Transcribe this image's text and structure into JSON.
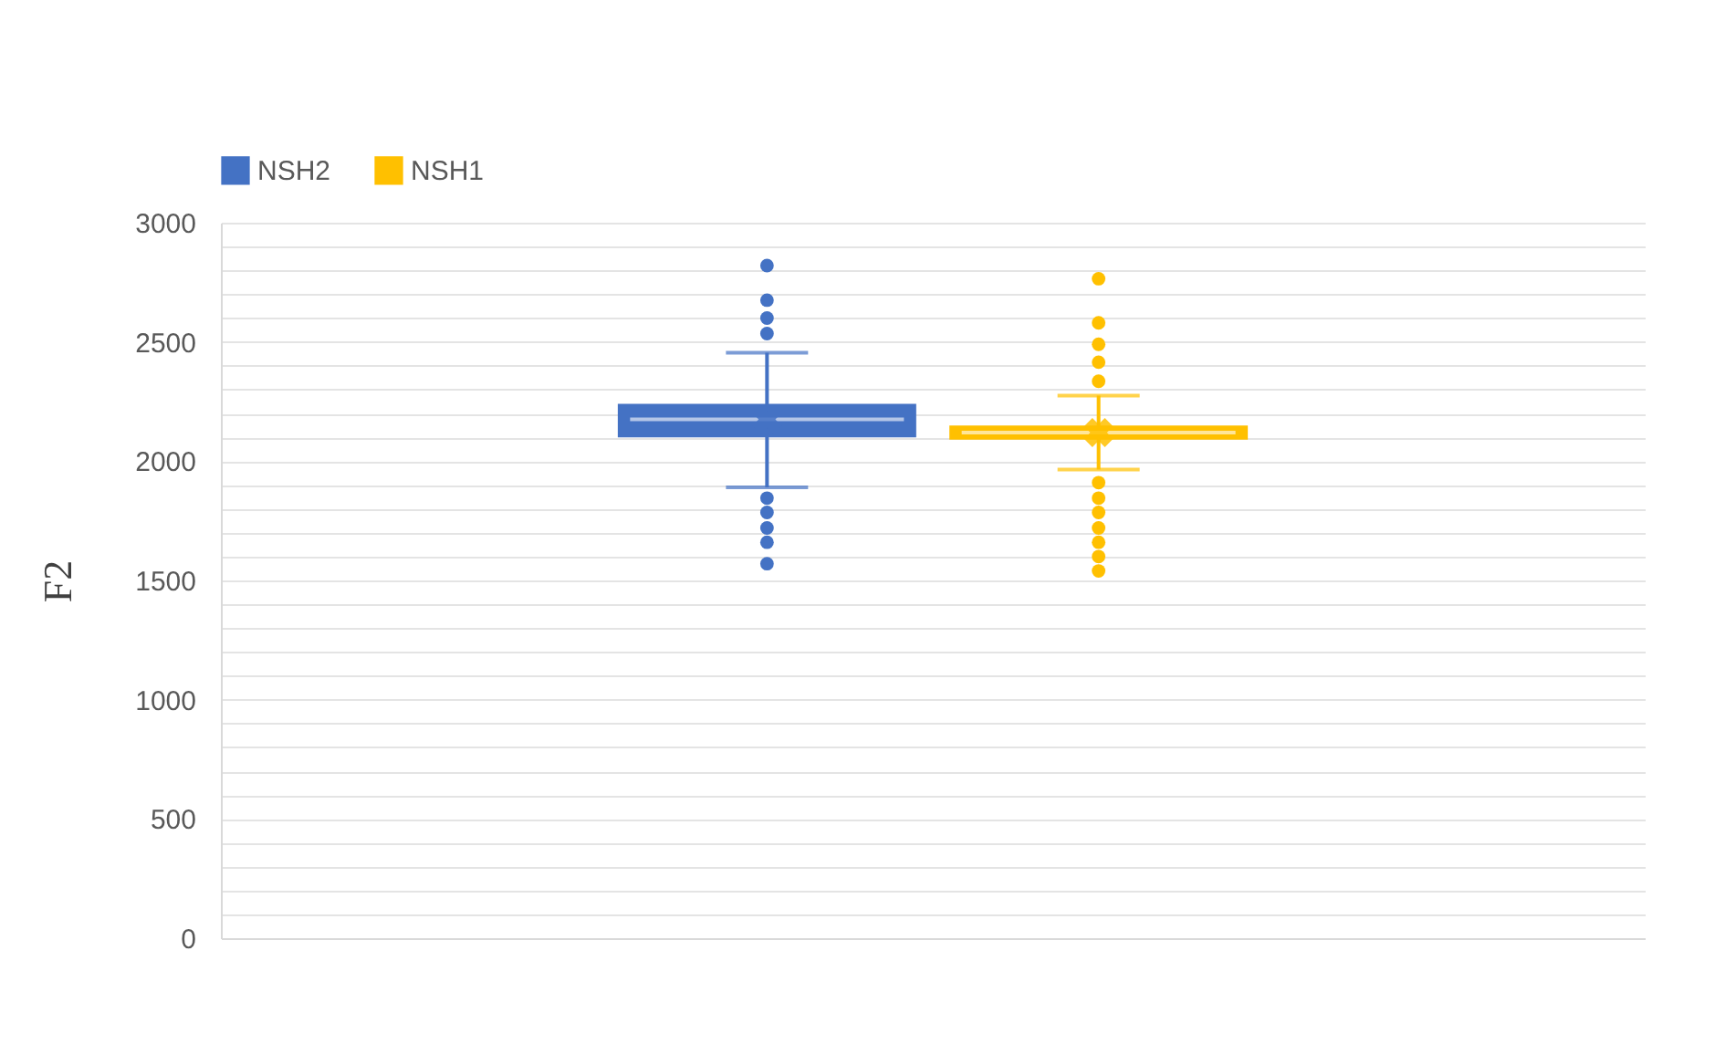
{
  "chart_data": {
    "type": "box",
    "ylabel": "F2",
    "categories": [
      null
    ],
    "legend": "top",
    "grid": "y",
    "tick_labels": "y",
    "ylim": [
      0,
      3000
    ],
    "yticks": [
      0,
      {
        "value": 100,
        "label": null
      },
      {
        "value": 200,
        "label": null
      },
      {
        "value": 300,
        "label": null
      },
      {
        "value": 400,
        "label": null
      },
      500,
      {
        "value": 600,
        "label": null
      },
      {
        "value": 700,
        "label": null
      },
      {
        "value": 800,
        "label": null
      },
      {
        "value": 900,
        "label": null
      },
      1000,
      {
        "value": 1100,
        "label": null
      },
      {
        "value": 1200,
        "label": null
      },
      {
        "value": 1300,
        "label": null
      },
      {
        "value": 1400,
        "label": null
      },
      1500,
      {
        "value": 1600,
        "label": null
      },
      {
        "value": 1700,
        "label": null
      },
      {
        "value": 1800,
        "label": null
      },
      {
        "value": 1900,
        "label": null
      },
      2000,
      {
        "value": 2100,
        "label": null
      },
      {
        "value": 2200,
        "label": null
      },
      {
        "value": 2300,
        "label": null
      },
      {
        "value": 2400,
        "label": null
      },
      2500,
      {
        "value": 2600,
        "label": null
      },
      {
        "value": 2700,
        "label": null
      },
      {
        "value": 2800,
        "label": null
      },
      {
        "value": 2900,
        "label": null
      },
      3000
    ],
    "series": [
      {
        "name": "NSH2",
        "color": "#4472c4",
        "boxes": [
          {
            "low": 1890,
            "q1": 2100,
            "median": 2175,
            "q3": 2240,
            "high": 2455,
            "mean": 2175,
            "outliers": [
              2820,
              2675,
              2600,
              2535,
              1845,
              1785,
              1720,
              1660,
              1570
            ]
          }
        ]
      },
      {
        "name": "NSH1",
        "color": "#ffc000",
        "boxes": [
          {
            "low": 1965,
            "q1": 2090,
            "median": 2120,
            "q3": 2150,
            "high": 2275,
            "mean": 2120,
            "outliers": [
              2765,
              2580,
              2490,
              2415,
              2335,
              1910,
              1845,
              1785,
              1720,
              1660,
              1600,
              1540
            ]
          }
        ]
      }
    ]
  }
}
